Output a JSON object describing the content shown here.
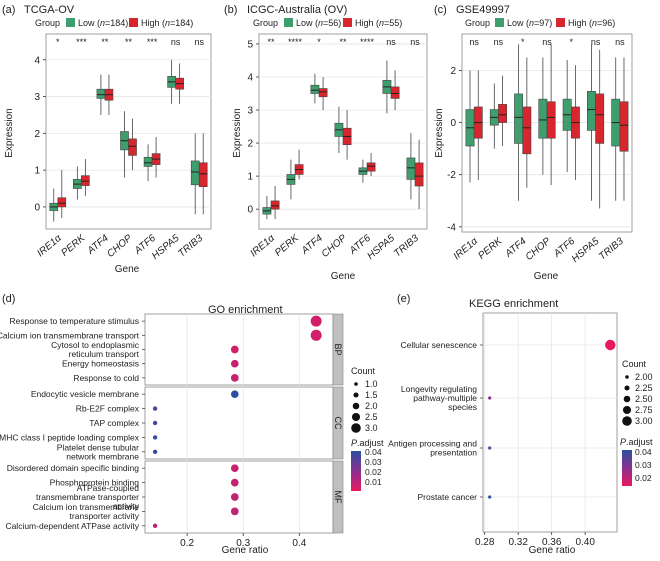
{
  "colors": {
    "low": "#3f9e6e",
    "high": "#d8262e",
    "strip": "#bfbfbf",
    "grid": "#e6e6e6",
    "panel_border": "#888888",
    "sig": "#333333",
    "dot_low_padj": "#e8195f",
    "dot_high_padj": "#2b50a0"
  },
  "boxplots": [
    {
      "panel_label": "(a)",
      "title": "TCGA-OV",
      "legend": {
        "title": "Group",
        "low": "Low (n=184)",
        "high": "High (n=184)",
        "low_pre": "Low (",
        "low_n": "n",
        "low_post": "=184)",
        "high_pre": "High (",
        "high_n": "n",
        "high_post": "=184)"
      },
      "xlabel": "Gene",
      "ylabel": "Expression",
      "ylim": [
        -0.6,
        4.7
      ],
      "yticks": [
        0,
        1,
        2,
        3,
        4
      ],
      "genes": [
        "IRE1α",
        "PERK",
        "ATF4",
        "CHOP",
        "ATF6",
        "HSPA5",
        "TRIB3"
      ],
      "significance": [
        "*",
        "***",
        "**",
        "**",
        "***",
        "ns",
        "ns"
      ],
      "low": [
        [
          -0.4,
          -0.1,
          0.0,
          0.1,
          0.5
        ],
        [
          0.2,
          0.5,
          0.62,
          0.75,
          1.1
        ],
        [
          2.5,
          2.95,
          3.05,
          3.2,
          3.6
        ],
        [
          0.8,
          1.55,
          1.8,
          2.05,
          2.6
        ],
        [
          0.7,
          1.1,
          1.2,
          1.35,
          1.7
        ],
        [
          2.8,
          3.25,
          3.4,
          3.55,
          4.0
        ],
        [
          -0.2,
          0.6,
          0.95,
          1.25,
          2.0
        ]
      ],
      "high": [
        [
          -0.3,
          0.0,
          0.1,
          0.25,
          1.0
        ],
        [
          0.3,
          0.58,
          0.7,
          0.85,
          1.3
        ],
        [
          2.5,
          2.9,
          3.05,
          3.2,
          3.6
        ],
        [
          1.0,
          1.4,
          1.65,
          1.85,
          2.4
        ],
        [
          0.8,
          1.15,
          1.3,
          1.45,
          1.9
        ],
        [
          2.8,
          3.2,
          3.35,
          3.5,
          3.9
        ],
        [
          -0.2,
          0.55,
          0.9,
          1.2,
          2.0
        ]
      ]
    },
    {
      "panel_label": "(b)",
      "title": "ICGC-Australia (OV)",
      "legend": {
        "title": "Group",
        "low": "Low (n=56)",
        "high": "High (n=55)",
        "low_pre": "Low (",
        "low_n": "n",
        "low_post": "=56)",
        "high_pre": "High (",
        "high_n": "n",
        "high_post": "=55)"
      },
      "xlabel": "Gene",
      "ylabel": "Expression",
      "ylim": [
        -0.6,
        5.3
      ],
      "yticks": [
        0,
        1,
        2,
        3,
        4,
        5
      ],
      "genes": [
        "IRE1α",
        "PERK",
        "ATF4",
        "CHOP",
        "ATF6",
        "HSPA5",
        "TRIB3"
      ],
      "significance": [
        "**",
        "****",
        "*",
        "**",
        "****",
        "ns",
        "ns"
      ],
      "low": [
        [
          -0.3,
          -0.15,
          -0.05,
          0.05,
          0.4
        ],
        [
          0.3,
          0.75,
          0.9,
          1.05,
          1.5
        ],
        [
          3.2,
          3.5,
          3.6,
          3.75,
          4.1
        ],
        [
          1.7,
          2.2,
          2.4,
          2.6,
          3.1
        ],
        [
          0.8,
          1.05,
          1.15,
          1.25,
          1.5
        ],
        [
          2.9,
          3.5,
          3.7,
          3.9,
          4.5
        ],
        [
          0.3,
          0.9,
          1.25,
          1.55,
          2.3
        ]
      ],
      "high": [
        [
          -0.3,
          0.0,
          0.1,
          0.25,
          0.7
        ],
        [
          0.9,
          1.05,
          1.2,
          1.35,
          1.8
        ],
        [
          3.0,
          3.4,
          3.55,
          3.65,
          4.0
        ],
        [
          1.5,
          1.95,
          2.2,
          2.45,
          3.0
        ],
        [
          1.0,
          1.15,
          1.3,
          1.4,
          1.7
        ],
        [
          3.0,
          3.35,
          3.5,
          3.7,
          4.2
        ],
        [
          0.0,
          0.7,
          1.0,
          1.4,
          2.1
        ]
      ]
    },
    {
      "panel_label": "(c)",
      "title": "GSE49997",
      "legend": {
        "title": "Group",
        "low": "Low (n=97)",
        "high": "High (n=96)",
        "low_pre": "Low (",
        "low_n": "n",
        "low_post": "=97)",
        "high_pre": "High (",
        "high_n": "n",
        "high_post": "=96)"
      },
      "xlabel": "Gene",
      "ylabel": "Expression",
      "ylim": [
        -4.2,
        3.4
      ],
      "yticks": [
        -4,
        -2,
        0,
        2
      ],
      "genes": [
        "IRE1α",
        "PERK",
        "ATF4",
        "CHOP",
        "ATF6",
        "HSPA5",
        "TRIB3"
      ],
      "significance": [
        "ns",
        "ns",
        "*",
        "ns",
        "*",
        "ns",
        "ns"
      ],
      "low": [
        [
          -2.3,
          -0.9,
          -0.2,
          0.5,
          2.0
        ],
        [
          -1.0,
          -0.1,
          0.2,
          0.5,
          1.5
        ],
        [
          -3.0,
          -0.8,
          0.2,
          1.1,
          3.0
        ],
        [
          -2.0,
          -0.6,
          0.1,
          0.9,
          2.5
        ],
        [
          -1.9,
          -0.3,
          0.3,
          0.9,
          2.4
        ],
        [
          -3.0,
          -0.3,
          0.5,
          1.2,
          3.0
        ],
        [
          -3.0,
          -0.9,
          0.0,
          0.9,
          2.5
        ]
      ],
      "high": [
        [
          -2.2,
          -0.6,
          0.0,
          0.6,
          2.0
        ],
        [
          -0.9,
          0.0,
          0.3,
          0.7,
          1.8
        ],
        [
          -2.5,
          -1.2,
          -0.2,
          0.6,
          2.5
        ],
        [
          -2.4,
          -0.6,
          0.2,
          0.8,
          3.0
        ],
        [
          -2.2,
          -0.6,
          0.0,
          0.6,
          2.2
        ],
        [
          -3.3,
          -0.8,
          0.3,
          1.1,
          2.8
        ],
        [
          -3.0,
          -1.1,
          -0.1,
          0.8,
          2.5
        ]
      ]
    }
  ],
  "go": {
    "panel_label": "(d)",
    "title": "GO enrichment",
    "xlabel": "Gene ratio",
    "xticks": [
      0.2,
      0.3,
      0.4
    ],
    "xlim": [
      0.125,
      0.46
    ],
    "facets": [
      "BP",
      "CC",
      "MF"
    ],
    "terms": [
      {
        "label": "Response to temperature stimulus",
        "ratio": 0.43,
        "count": 3,
        "padj": 0.01,
        "facet": "BP"
      },
      {
        "label": "Calcium ion transmembrane transport",
        "ratio": 0.43,
        "count": 3,
        "padj": 0.01,
        "facet": "BP"
      },
      {
        "label": "Cytosol to endoplasmic reticulum transport",
        "ratio": 0.285,
        "count": 2,
        "padj": 0.01,
        "facet": "BP"
      },
      {
        "label": "Energy homeostasis",
        "ratio": 0.285,
        "count": 2,
        "padj": 0.012,
        "facet": "BP"
      },
      {
        "label": "Response to cold",
        "ratio": 0.285,
        "count": 2,
        "padj": 0.012,
        "facet": "BP"
      },
      {
        "label": "Endocytic vesicle membrane",
        "ratio": 0.285,
        "count": 2,
        "padj": 0.045,
        "facet": "CC"
      },
      {
        "label": "Rb-E2F complex",
        "ratio": 0.143,
        "count": 1,
        "padj": 0.035,
        "facet": "CC"
      },
      {
        "label": "TAP complex",
        "ratio": 0.143,
        "count": 1,
        "padj": 0.04,
        "facet": "CC"
      },
      {
        "label": "MHC class I peptide loading complex",
        "ratio": 0.143,
        "count": 1,
        "padj": 0.042,
        "facet": "CC"
      },
      {
        "label": "Platelet dense tubular network membrane",
        "ratio": 0.143,
        "count": 1,
        "padj": 0.044,
        "facet": "CC"
      },
      {
        "label": "Disordered domain specific binding",
        "ratio": 0.285,
        "count": 2,
        "padj": 0.012,
        "facet": "MF"
      },
      {
        "label": "Phosphoprotein binding",
        "ratio": 0.285,
        "count": 2,
        "padj": 0.013,
        "facet": "MF"
      },
      {
        "label": "ATPase-coupled transmembrane transporter activity",
        "ratio": 0.285,
        "count": 2,
        "padj": 0.013,
        "facet": "MF"
      },
      {
        "label": "Calcium ion transmembrane transporter activity",
        "ratio": 0.285,
        "count": 2,
        "padj": 0.014,
        "facet": "MF"
      },
      {
        "label": "Calcium-dependent ATPase activity",
        "ratio": 0.143,
        "count": 1,
        "padj": 0.015,
        "facet": "MF"
      }
    ],
    "legend": {
      "count_title": "Count",
      "count_values": [
        1.0,
        1.5,
        2.0,
        2.5,
        3.0
      ],
      "count_labels": [
        "1.0",
        "1.5",
        "2.0",
        "2.5",
        "3.0"
      ],
      "padj_title": "P.adjust",
      "padj_ticks": [
        "0.04",
        "0.03",
        "0.02",
        "0.01"
      ]
    }
  },
  "kegg": {
    "panel_label": "(e)",
    "title": "KEGG enrichment",
    "xlabel": "Gene ratio",
    "xticks": [
      0.28,
      0.32,
      0.36,
      0.4
    ],
    "xtick_labels": [
      "0.28",
      "0.32",
      "0.36",
      "0.40"
    ],
    "xlim": [
      0.278,
      0.438
    ],
    "terms": [
      {
        "label": "Cellular senescence",
        "ratio": 0.43,
        "count": 3,
        "padj": 0.015
      },
      {
        "label": "Longevity regulating pathway-multiple species",
        "ratio": 0.286,
        "count": 2,
        "padj": 0.03
      },
      {
        "label": "Antigen processing and presentation",
        "ratio": 0.286,
        "count": 2,
        "padj": 0.04
      },
      {
        "label": "Prostate cancer",
        "ratio": 0.286,
        "count": 2,
        "padj": 0.045
      }
    ],
    "legend": {
      "count_title": "Count",
      "count_values": [
        2.0,
        2.25,
        2.5,
        2.75,
        3.0
      ],
      "count_labels": [
        "2.00",
        "2.25",
        "2.50",
        "2.75",
        "3.00"
      ],
      "padj_title": "P.adjust",
      "padj_ticks": [
        "0.04",
        "0.03",
        "0.02"
      ]
    }
  }
}
